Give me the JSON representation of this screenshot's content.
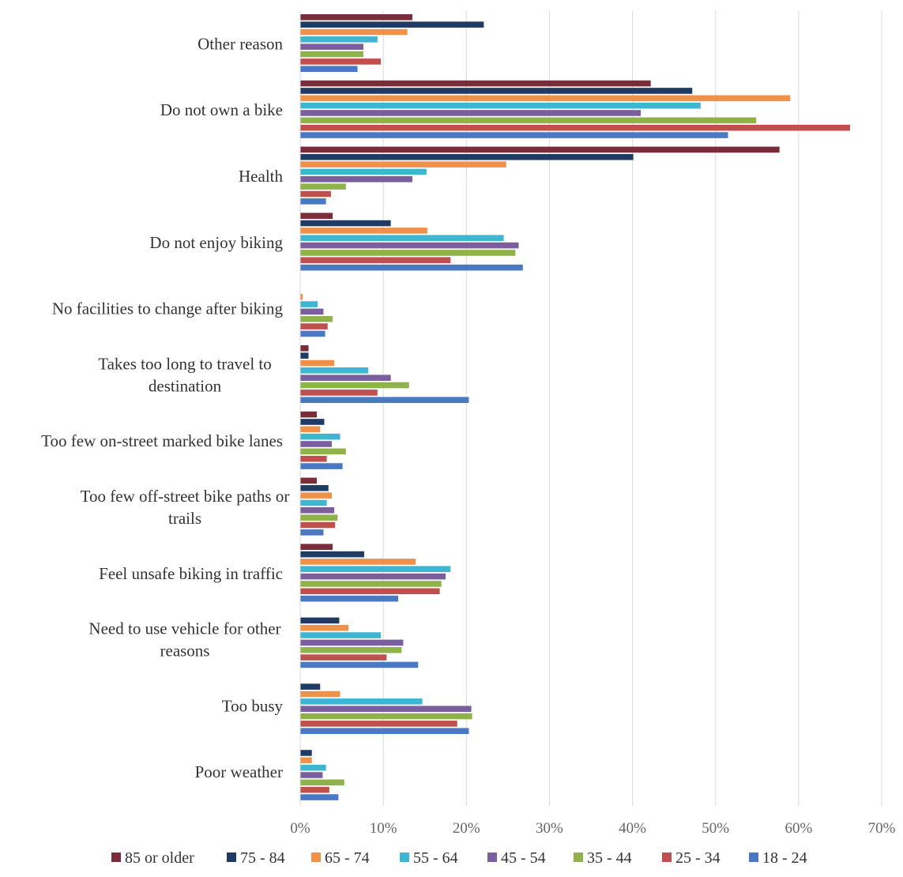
{
  "chart_data": {
    "type": "bar",
    "orientation": "horizontal",
    "title": "",
    "xlabel": "",
    "ylabel": "",
    "xlim": [
      0,
      70
    ],
    "x_ticks": [
      "0%",
      "10%",
      "20%",
      "30%",
      "40%",
      "50%",
      "60%",
      "70%"
    ],
    "grid": true,
    "legend_position": "bottom",
    "categories": [
      [
        "Other reason"
      ],
      [
        "Do not own a bike"
      ],
      [
        "Health"
      ],
      [
        "Do not enjoy biking"
      ],
      [
        "No facilities to change after biking"
      ],
      [
        "Takes too long to travel to",
        "destination"
      ],
      [
        "Too few on-street marked bike lanes"
      ],
      [
        "Too few off-street bike paths or",
        "trails"
      ],
      [
        "Feel unsafe biking in traffic"
      ],
      [
        "Need to use vehicle for other",
        "reasons"
      ],
      [
        "Too busy"
      ],
      [
        "Poor weather"
      ]
    ],
    "series": [
      {
        "name": "85 or older",
        "color": "#7b2c3b",
        "values": [
          13.5,
          42.2,
          57.7,
          3.9,
          0.0,
          1.0,
          2.0,
          2.0,
          3.9,
          0.0,
          0.0,
          0.0
        ]
      },
      {
        "name": "75 - 84",
        "color": "#1f3b63",
        "values": [
          22.1,
          47.2,
          40.1,
          10.9,
          0.0,
          1.0,
          2.9,
          3.4,
          7.7,
          4.7,
          2.4,
          1.4
        ]
      },
      {
        "name": "65 - 74",
        "color": "#f0914a",
        "values": [
          12.9,
          59.0,
          24.8,
          15.3,
          0.3,
          4.1,
          2.4,
          3.8,
          13.9,
          5.8,
          4.8,
          1.4
        ]
      },
      {
        "name": "55 - 64",
        "color": "#3fb6d1",
        "values": [
          9.3,
          48.2,
          15.2,
          24.5,
          2.1,
          8.2,
          4.8,
          3.2,
          18.1,
          9.7,
          14.7,
          3.1
        ]
      },
      {
        "name": "45 - 54",
        "color": "#7a5e9e",
        "values": [
          7.6,
          41.0,
          13.5,
          26.3,
          2.8,
          10.9,
          3.8,
          4.1,
          17.5,
          12.4,
          20.6,
          2.7
        ]
      },
      {
        "name": "35 - 44",
        "color": "#8fb24b",
        "values": [
          7.6,
          54.9,
          5.5,
          25.9,
          3.9,
          13.1,
          5.5,
          4.5,
          17.0,
          12.2,
          20.7,
          5.3
        ]
      },
      {
        "name": "25 - 34",
        "color": "#c0504d",
        "values": [
          9.7,
          66.2,
          3.7,
          18.1,
          3.3,
          9.3,
          3.2,
          4.2,
          16.8,
          10.4,
          18.9,
          3.5
        ]
      },
      {
        "name": "18 - 24",
        "color": "#4a78c2",
        "values": [
          6.9,
          51.5,
          3.1,
          26.8,
          3.0,
          20.3,
          5.1,
          2.8,
          11.8,
          14.2,
          20.3,
          4.6
        ]
      }
    ]
  }
}
